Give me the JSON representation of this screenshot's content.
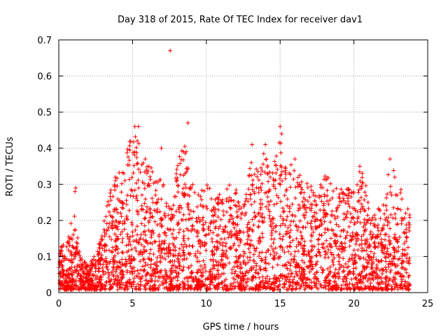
{
  "chart_data": {
    "type": "scatter",
    "title": "Day 318 of 2015, Rate Of TEC Index for receiver dav1",
    "xlabel": "GPS time / hours",
    "ylabel": "ROTI / TECUs",
    "xlim": [
      0,
      25
    ],
    "ylim": [
      0,
      0.7
    ],
    "xticks": [
      "0",
      "5",
      "10",
      "15",
      "20",
      "25"
    ],
    "yticks": [
      "0",
      "0.1",
      "0.2",
      "0.3",
      "0.4",
      "0.5",
      "0.6",
      "0.7"
    ],
    "grid": true,
    "marker": "plus",
    "color": "#ff0000",
    "series": [
      {
        "envelope": [
          [
            0.0,
            0.14
          ],
          [
            0.5,
            0.12
          ],
          [
            1.0,
            0.22
          ],
          [
            1.5,
            0.09
          ],
          [
            2.0,
            0.07
          ],
          [
            2.5,
            0.1
          ],
          [
            3.0,
            0.18
          ],
          [
            3.5,
            0.28
          ],
          [
            4.0,
            0.33
          ],
          [
            4.5,
            0.38
          ],
          [
            5.0,
            0.45
          ],
          [
            5.5,
            0.4
          ],
          [
            6.0,
            0.36
          ],
          [
            6.5,
            0.32
          ],
          [
            7.0,
            0.3
          ],
          [
            7.5,
            0.25
          ],
          [
            8.0,
            0.34
          ],
          [
            8.5,
            0.42
          ],
          [
            9.0,
            0.3
          ],
          [
            9.5,
            0.26
          ],
          [
            10.0,
            0.3
          ],
          [
            10.5,
            0.28
          ],
          [
            11.0,
            0.26
          ],
          [
            11.5,
            0.3
          ],
          [
            12.0,
            0.28
          ],
          [
            12.5,
            0.22
          ],
          [
            13.0,
            0.35
          ],
          [
            13.5,
            0.33
          ],
          [
            14.0,
            0.4
          ],
          [
            14.5,
            0.33
          ],
          [
            15.0,
            0.45
          ],
          [
            15.5,
            0.33
          ],
          [
            16.0,
            0.37
          ],
          [
            16.5,
            0.3
          ],
          [
            17.0,
            0.31
          ],
          [
            17.5,
            0.25
          ],
          [
            18.0,
            0.34
          ],
          [
            18.5,
            0.3
          ],
          [
            19.0,
            0.28
          ],
          [
            19.5,
            0.28
          ],
          [
            20.0,
            0.29
          ],
          [
            20.5,
            0.34
          ],
          [
            21.0,
            0.26
          ],
          [
            21.5,
            0.22
          ],
          [
            22.0,
            0.24
          ],
          [
            22.5,
            0.36
          ],
          [
            23.0,
            0.3
          ],
          [
            23.5,
            0.26
          ],
          [
            23.8,
            0.22
          ]
        ],
        "outliers": [
          [
            7.55,
            0.67
          ],
          [
            5.15,
            0.46
          ],
          [
            5.4,
            0.46
          ],
          [
            8.75,
            0.47
          ],
          [
            15.0,
            0.46
          ],
          [
            15.1,
            0.44
          ],
          [
            13.1,
            0.41
          ],
          [
            14.0,
            0.41
          ],
          [
            1.15,
            0.29
          ],
          [
            1.1,
            0.28
          ],
          [
            6.95,
            0.4
          ],
          [
            20.4,
            0.35
          ],
          [
            13.05,
            0.36
          ],
          [
            16.0,
            0.37
          ],
          [
            22.45,
            0.37
          ]
        ]
      }
    ]
  }
}
